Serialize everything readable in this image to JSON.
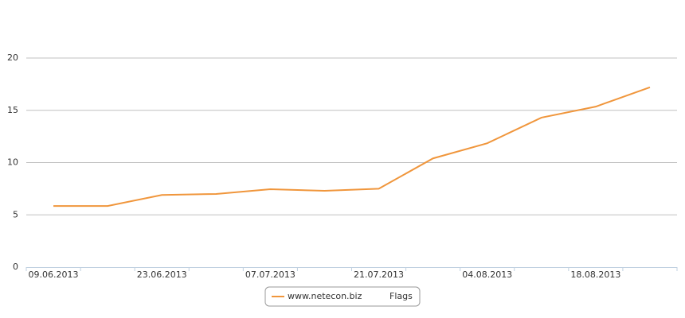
{
  "chart_data": {
    "type": "line",
    "categories": [
      "09.06.2013",
      null,
      "23.06.2013",
      null,
      "07.07.2013",
      null,
      "21.07.2013",
      null,
      "04.08.2013",
      null,
      "18.08.2013",
      null
    ],
    "series": [
      {
        "name": "www.netecon.biz",
        "color": "#f0963c",
        "values": [
          5.85,
          5.85,
          6.9,
          7.0,
          7.45,
          7.3,
          7.5,
          10.4,
          11.85,
          14.3,
          15.35,
          17.2
        ]
      }
    ],
    "legend_extra": "Flags",
    "ylim": [
      0,
      20
    ],
    "yticks": [
      0,
      5,
      10,
      15,
      20
    ],
    "grid": true
  }
}
